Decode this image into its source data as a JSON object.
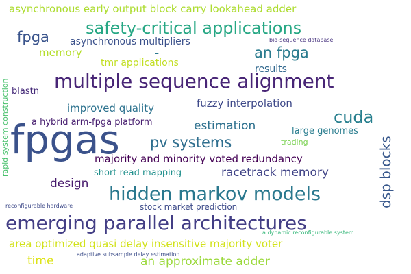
{
  "words": [
    {
      "id": "w01",
      "text": "asynchronous early output block carry lookahead adder",
      "color": "#addc30"
    },
    {
      "id": "w02",
      "text": "fpga",
      "color": "#3a548c"
    },
    {
      "id": "w03",
      "text": "safety-critical applications",
      "color": "#26a784"
    },
    {
      "id": "w04",
      "text": "asynchronous multipliers",
      "color": "#3b518b"
    },
    {
      "id": "w05",
      "text": "memory",
      "color": "#b5de2b"
    },
    {
      "id": "w06",
      "text": "-",
      "color": "#2a788e"
    },
    {
      "id": "w07",
      "text": "an fpga",
      "color": "#2a7b8e"
    },
    {
      "id": "w08",
      "text": "bio-sequence database",
      "color": "#46327e"
    },
    {
      "id": "w09",
      "text": "tmr applications",
      "color": "#c2df23"
    },
    {
      "id": "w10",
      "text": "results",
      "color": "#31688e"
    },
    {
      "id": "w11",
      "text": "multiple sequence alignment",
      "color": "#482576"
    },
    {
      "id": "w12",
      "text": "blastn",
      "color": "#472c7a"
    },
    {
      "id": "w13",
      "text": "rapid system construction",
      "color": "#4ac16d"
    },
    {
      "id": "w14",
      "text": "improved quality",
      "color": "#2c728e"
    },
    {
      "id": "w15",
      "text": "fuzzy interpolation",
      "color": "#3e4989"
    },
    {
      "id": "w16",
      "text": "cuda",
      "color": "#277f8e"
    },
    {
      "id": "w17",
      "text": "a hybrid arm-fpga platform",
      "color": "#481f70"
    },
    {
      "id": "w18",
      "text": "estimation",
      "color": "#2d708e"
    },
    {
      "id": "w19",
      "text": "dsp blocks",
      "color": "#38588c"
    },
    {
      "id": "w20",
      "text": "fpgas",
      "color": "#3b528b"
    },
    {
      "id": "w21",
      "text": "large genomes",
      "color": "#287c8e"
    },
    {
      "id": "w22",
      "text": "pv systems",
      "color": "#2e6e8e"
    },
    {
      "id": "w23",
      "text": "trading",
      "color": "#7ad151"
    },
    {
      "id": "w24",
      "text": "majority and minority voted redundancy",
      "color": "#440154"
    },
    {
      "id": "w25",
      "text": "racetrack memory",
      "color": "#414487"
    },
    {
      "id": "w26",
      "text": "short read mapping",
      "color": "#21908d"
    },
    {
      "id": "w27",
      "text": "design",
      "color": "#481b6d"
    },
    {
      "id": "w28",
      "text": "hidden markov models",
      "color": "#2a788e"
    },
    {
      "id": "w29",
      "text": "reconfigurable hardware",
      "color": "#3e4a89"
    },
    {
      "id": "w30",
      "text": "stock market prediction",
      "color": "#3e4c8a"
    },
    {
      "id": "w31",
      "text": "emerging parallel architectures",
      "color": "#433e85"
    },
    {
      "id": "w32",
      "text": "a dynamic reconfigurable system",
      "color": "#35b779"
    },
    {
      "id": "w33",
      "text": "area optimized quasi delay insensitive majority voter",
      "color": "#d2e21b"
    },
    {
      "id": "w34",
      "text": "time",
      "color": "#dde318"
    },
    {
      "id": "w35",
      "text": "adaptive subsample delay estimation",
      "color": "#3d4e8a"
    },
    {
      "id": "w36",
      "text": "an approximate adder",
      "color": "#9bd93c"
    }
  ]
}
